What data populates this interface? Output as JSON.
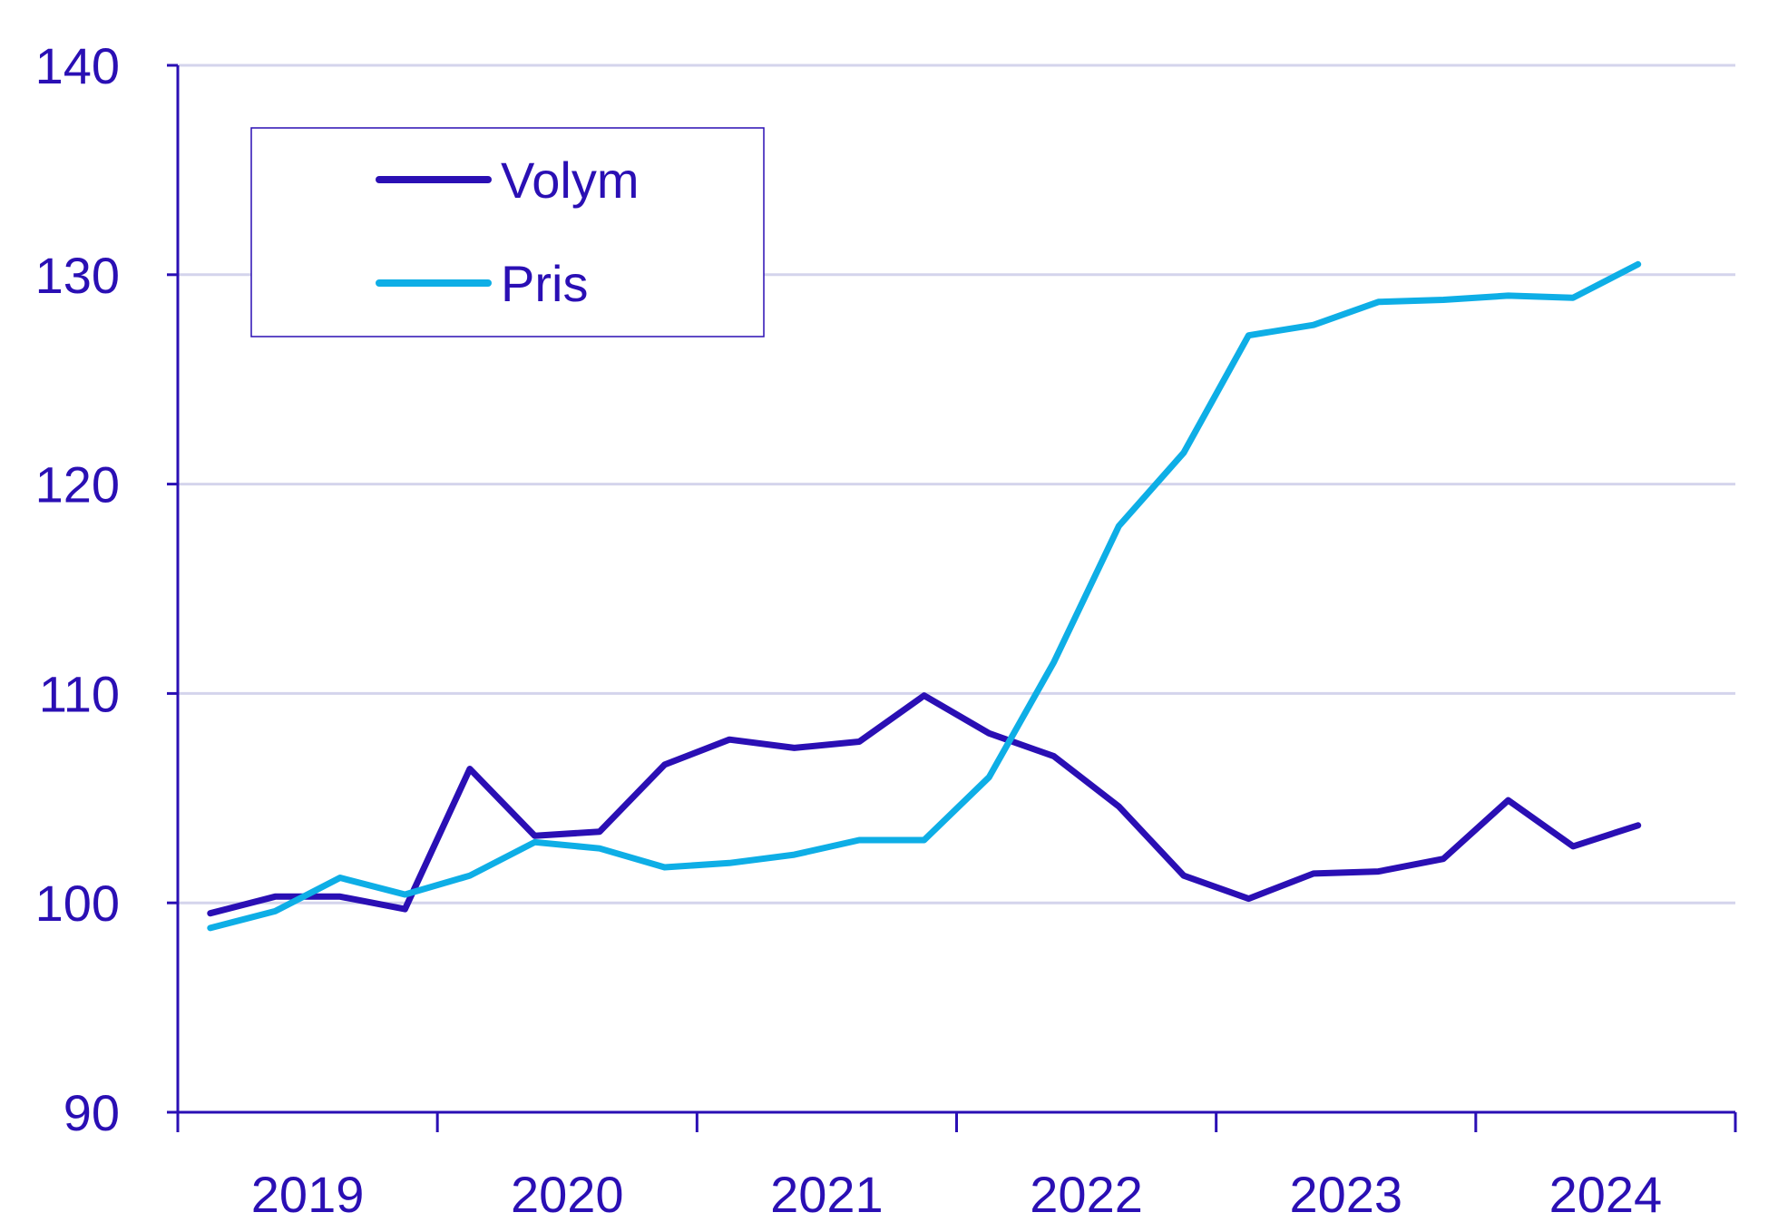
{
  "chart_data": {
    "type": "line",
    "title": "",
    "xlabel": "",
    "ylabel": "",
    "ylim": [
      90,
      140
    ],
    "y_ticks": [
      "90",
      "100",
      "110",
      "120",
      "130",
      "140"
    ],
    "x_tick_labels": [
      "2019",
      "2020",
      "2021",
      "2022",
      "2023",
      "2024"
    ],
    "x": [
      "2019 Q1",
      "2019 Q2",
      "2019 Q3",
      "2019 Q4",
      "2020 Q1",
      "2020 Q2",
      "2020 Q3",
      "2020 Q4",
      "2021 Q1",
      "2021 Q2",
      "2021 Q3",
      "2021 Q4",
      "2022 Q1",
      "2022 Q2",
      "2022 Q3",
      "2022 Q4",
      "2023 Q1",
      "2023 Q2",
      "2023 Q3",
      "2023 Q4",
      "2024 Q1",
      "2024 Q2",
      "2024 Q3"
    ],
    "grid": true,
    "legend_position": "top-left",
    "series": [
      {
        "name": "Volym",
        "color": "#2a0fb4",
        "values": [
          99.5,
          100.3,
          100.3,
          99.7,
          106.4,
          103.2,
          103.4,
          106.6,
          107.8,
          107.4,
          107.7,
          109.9,
          108.1,
          107.0,
          104.6,
          101.3,
          100.2,
          101.4,
          101.5,
          102.1,
          104.9,
          102.7,
          103.7
        ]
      },
      {
        "name": "Pris",
        "color": "#0eaee6",
        "values": [
          98.8,
          99.6,
          101.2,
          100.4,
          101.3,
          102.9,
          102.6,
          101.7,
          101.9,
          102.3,
          103.0,
          103.0,
          106.0,
          111.5,
          118.0,
          121.5,
          127.1,
          127.6,
          128.7,
          128.8,
          129.0,
          128.9,
          130.5
        ]
      }
    ]
  }
}
